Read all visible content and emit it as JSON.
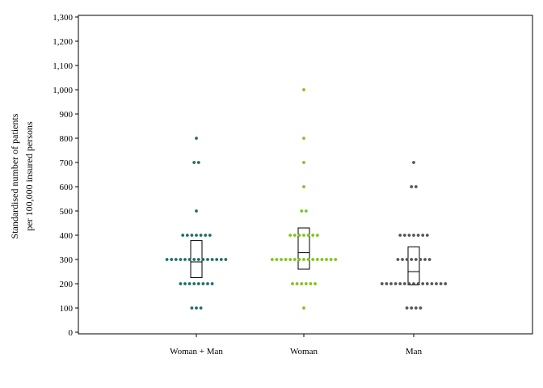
{
  "chart_data": {
    "type": "dot-box",
    "ylabel_line1": "Standardised number of patients",
    "ylabel_line2": "per 100,000 insured persons",
    "ylim": [
      0,
      1300
    ],
    "yticks": [
      0,
      100,
      200,
      300,
      400,
      500,
      600,
      700,
      800,
      900,
      1000,
      1100,
      1200,
      1300
    ],
    "ytick_labels": [
      "0",
      "100",
      "200",
      "300",
      "400",
      "500",
      "600",
      "700",
      "800",
      "900",
      "1,000",
      "1,100",
      "1,200",
      "1,300"
    ],
    "categories": [
      "Woman + Man",
      "Woman",
      "Man"
    ],
    "grid": false,
    "series": [
      {
        "category": "Woman + Man",
        "color": "#1f6b6b",
        "points": [
          {
            "y": 800,
            "n": 1
          },
          {
            "y": 700,
            "n": 2
          },
          {
            "y": 500,
            "n": 1
          },
          {
            "y": 400,
            "n": 7
          },
          {
            "y": 300,
            "n": 14
          },
          {
            "y": 200,
            "n": 8
          },
          {
            "y": 100,
            "n": 3
          }
        ],
        "box": {
          "q1": 225,
          "median": 290,
          "q3": 378
        }
      },
      {
        "category": "Woman",
        "color": "#7fc31c",
        "points": [
          {
            "y": 1000,
            "n": 1
          },
          {
            "y": 800,
            "n": 1
          },
          {
            "y": 700,
            "n": 1
          },
          {
            "y": 600,
            "n": 1
          },
          {
            "y": 500,
            "n": 2
          },
          {
            "y": 400,
            "n": 7
          },
          {
            "y": 300,
            "n": 15
          },
          {
            "y": 200,
            "n": 6
          },
          {
            "y": 100,
            "n": 1
          }
        ],
        "box": {
          "q1": 260,
          "median": 328,
          "q3": 430
        }
      },
      {
        "category": "Man",
        "color": "#555555",
        "points": [
          {
            "y": 700,
            "n": 1
          },
          {
            "y": 600,
            "n": 2
          },
          {
            "y": 400,
            "n": 7
          },
          {
            "y": 300,
            "n": 8
          },
          {
            "y": 200,
            "n": 15
          },
          {
            "y": 100,
            "n": 4
          }
        ],
        "box": {
          "q1": 195,
          "median": 250,
          "q3": 352
        }
      }
    ]
  }
}
